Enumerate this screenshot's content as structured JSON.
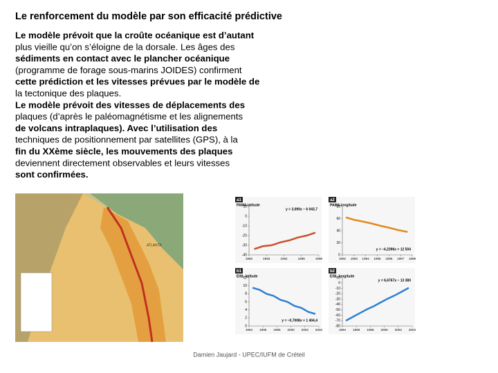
{
  "title": "Le renforcement du modèle par son efficacité prédictive",
  "lines": [
    {
      "text": "Le modèle prévoit que la croûte océanique est d’autant",
      "bold": true
    },
    {
      "text": "plus vieille qu’on s’éloigne de la dorsale. Les âges des",
      "bold": false
    },
    {
      "text": "sédiments en contact avec le plancher océanique",
      "bold": true
    },
    {
      "text": "(programme de forage sous-marins JOIDES) confirment",
      "bold": false
    },
    {
      "text": "cette prédiction et les vitesses prévues par le modèle de",
      "bold": true
    },
    {
      "text": "la tectonique des plaques.",
      "bold": false
    },
    {
      "text": "Le modèle prévoit des vitesses de déplacements des",
      "bold": true
    },
    {
      "text": "plaques (d’après le paléomagnétisme et les alignements",
      "bold": false
    },
    {
      "text": "de volcans intraplaques). Avec l’utilisation des",
      "bold": true
    },
    {
      "text": "techniques de positionnement par satellites (GPS), à la",
      "bold": false
    },
    {
      "text": "fin du XXème siècle, les mouvements des plaques",
      "bold": true
    },
    {
      "text": "deviennent directement observables et leurs vitesses",
      "bold": false
    },
    {
      "text": "sont confirmées.",
      "bold": true
    }
  ],
  "map": {
    "label": "ATLANTA"
  },
  "chart_data": [
    {
      "type": "line",
      "tag": "a1",
      "title": "PAMA-latitude",
      "equation": "y = 3,090x – 6 043,7",
      "color": "#c8502a",
      "x": [
        1992.3,
        1992.8,
        1993.3,
        1993.8,
        1994.3,
        1994.8,
        1995.3,
        1995.8
      ],
      "values": [
        -34,
        -31,
        -30,
        -27,
        -25,
        -22,
        -20,
        -17
      ],
      "xlim": [
        1992,
        1996
      ],
      "xticks": [
        1992,
        1993,
        1994,
        1995,
        1996
      ],
      "ylim": [
        -40,
        10
      ],
      "yticks": [
        10,
        0,
        -10,
        -20,
        -30,
        -40
      ]
    },
    {
      "type": "line",
      "tag": "a2",
      "title": "PAMA-longitude",
      "equation": "y = –4,2396x + 12 504",
      "color": "#e08a20",
      "x": [
        1992.3,
        1993,
        1993.8,
        1994.5,
        1995.3,
        1996,
        1996.8,
        1997.6
      ],
      "values": [
        62,
        58,
        55,
        52,
        48,
        45,
        41,
        38
      ],
      "xlim": [
        1992,
        1998
      ],
      "xticks": [
        1992,
        1993,
        1994,
        1995,
        1996,
        1997,
        1998
      ],
      "ylim": [
        0,
        80
      ],
      "yticks": [
        0,
        20,
        40,
        60,
        80
      ]
    },
    {
      "type": "line",
      "tag": "b1",
      "title": "EISL-latitude",
      "equation": "y = –0,7008x + 1 404,4",
      "color": "#2e7fd0",
      "x": [
        1994.5,
        1995.5,
        1996.5,
        1997.5,
        1998.5,
        1999.5,
        2000.5,
        2001.5,
        2002.5,
        2003.5
      ],
      "values": [
        9.5,
        9,
        8,
        7.5,
        6.5,
        6,
        5,
        4.5,
        3.5,
        3
      ],
      "xlim": [
        1994,
        2004
      ],
      "xticks": [
        1994,
        1996,
        1998,
        2000,
        2002,
        2004
      ],
      "ylim": [
        0,
        12
      ],
      "yticks": [
        0,
        2,
        4,
        6,
        8,
        10,
        12
      ]
    },
    {
      "type": "line",
      "tag": "b2",
      "title": "EISL-longitude",
      "equation": "y = 6,6767x – 13 380",
      "color": "#2e7fd0",
      "x": [
        1994.5,
        1995.5,
        1996.5,
        1997.5,
        1998.5,
        1999.5,
        2000.5,
        2001.5,
        2002.5,
        2003.5
      ],
      "values": [
        -70,
        -63,
        -56,
        -49,
        -43,
        -36,
        -29,
        -23,
        -16,
        -9
      ],
      "xlim": [
        1994,
        2004
      ],
      "xticks": [
        1994,
        1996,
        1998,
        2000,
        2002,
        2004
      ],
      "ylim": [
        -80,
        10
      ],
      "yticks": [
        10,
        0,
        -10,
        -20,
        -30,
        -40,
        -50,
        -60,
        -70,
        -80
      ]
    }
  ],
  "footer": "Damien Jaujard - UPEC/IUFM de Créteil"
}
